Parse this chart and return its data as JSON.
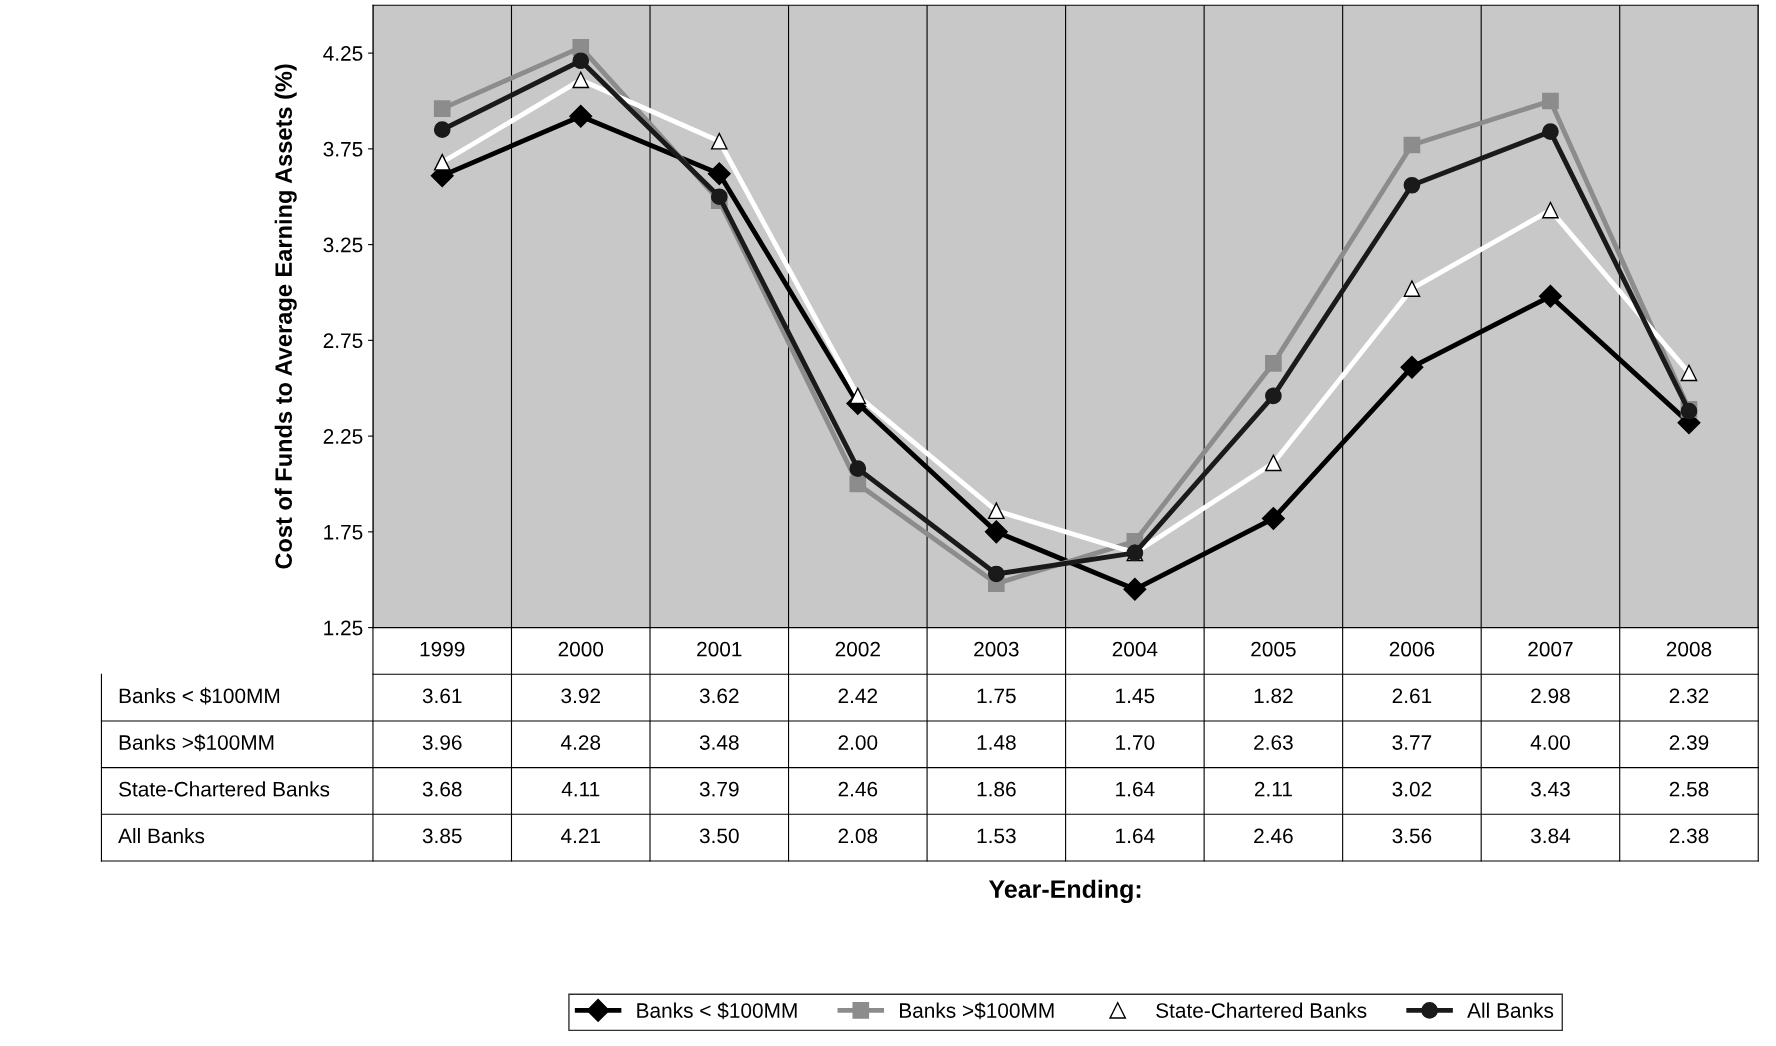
{
  "chart_data": {
    "type": "line",
    "ylabel": "Cost of Funds to Average Earning Assets (%)",
    "annotations": [
      "Year-Ending:"
    ],
    "categories": [
      "1999",
      "2000",
      "2001",
      "2002",
      "2003",
      "2004",
      "2005",
      "2006",
      "2007",
      "2008"
    ],
    "series": [
      {
        "name": "Banks < $100MM",
        "color": "#000000",
        "marker": "diamond",
        "values": [
          3.61,
          3.92,
          3.62,
          2.42,
          1.75,
          1.45,
          1.82,
          2.61,
          2.98,
          2.32
        ],
        "value_labels": [
          "3.61",
          "3.92",
          "3.62",
          "2.42",
          "1.75",
          "1.45",
          "1.82",
          "2.61",
          "2.98",
          "2.32"
        ]
      },
      {
        "name": "Banks >$100MM",
        "color": "#8c8c8c",
        "marker": "square",
        "values": [
          3.96,
          4.28,
          3.48,
          2.0,
          1.48,
          1.7,
          2.63,
          3.77,
          4.0,
          2.39
        ],
        "value_labels": [
          "3.96",
          "4.28",
          "3.48",
          "2.00",
          "1.48",
          "1.70",
          "2.63",
          "3.77",
          "4.00",
          "2.39"
        ]
      },
      {
        "name": "State-Chartered Banks",
        "color": "#ffffff",
        "marker": "triangle",
        "values": [
          3.68,
          4.11,
          3.79,
          2.46,
          1.86,
          1.64,
          2.11,
          3.02,
          3.43,
          2.58
        ],
        "value_labels": [
          "3.68",
          "4.11",
          "3.79",
          "2.46",
          "1.86",
          "1.64",
          "2.11",
          "3.02",
          "3.43",
          "2.58"
        ]
      },
      {
        "name": "All Banks",
        "color": "#1a1a1a",
        "marker": "circle",
        "values": [
          3.85,
          4.21,
          3.5,
          2.08,
          1.53,
          1.64,
          2.46,
          3.56,
          3.84,
          2.38
        ],
        "value_labels": [
          "3.85",
          "4.21",
          "3.50",
          "2.08",
          "1.53",
          "1.64",
          "2.46",
          "3.56",
          "3.84",
          "2.38"
        ]
      }
    ],
    "ylim": [
      1.25,
      4.5
    ],
    "yticks": [
      1.25,
      1.75,
      2.25,
      2.75,
      3.25,
      3.75,
      4.25
    ],
    "grid": "x",
    "legend": "bottom",
    "line_style": "solid"
  }
}
